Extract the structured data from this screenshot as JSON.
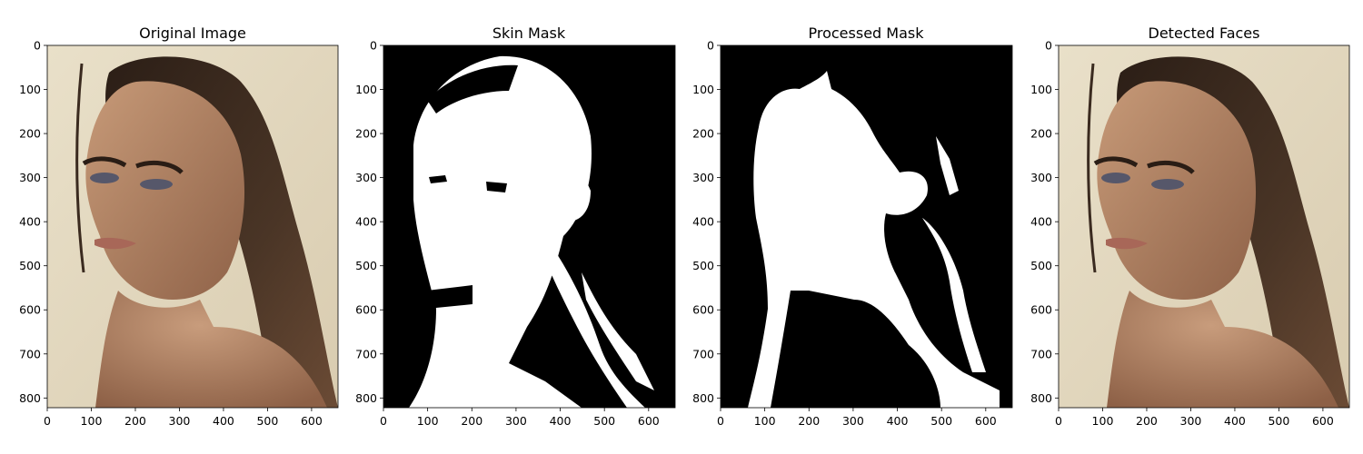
{
  "panels": [
    {
      "id": "original",
      "title": "Original Image",
      "kind": "photo"
    },
    {
      "id": "skin-mask",
      "title": "Skin Mask",
      "kind": "mask"
    },
    {
      "id": "processed-mask",
      "title": "Processed Mask",
      "kind": "processed"
    },
    {
      "id": "detected-faces",
      "title": "Detected Faces",
      "kind": "photo"
    }
  ],
  "axes": {
    "x_ticks": [
      0,
      100,
      200,
      300,
      400,
      500,
      600
    ],
    "y_ticks": [
      0,
      100,
      200,
      300,
      400,
      500,
      600,
      700,
      800
    ],
    "x_range": [
      0,
      660
    ],
    "y_range": [
      0,
      822
    ]
  },
  "colors": {
    "photo_background": "#e6dcc3",
    "hair": "#3a2a1f",
    "skin": "#b48566",
    "mask_white": "#ffffff",
    "mask_black": "#000000"
  }
}
